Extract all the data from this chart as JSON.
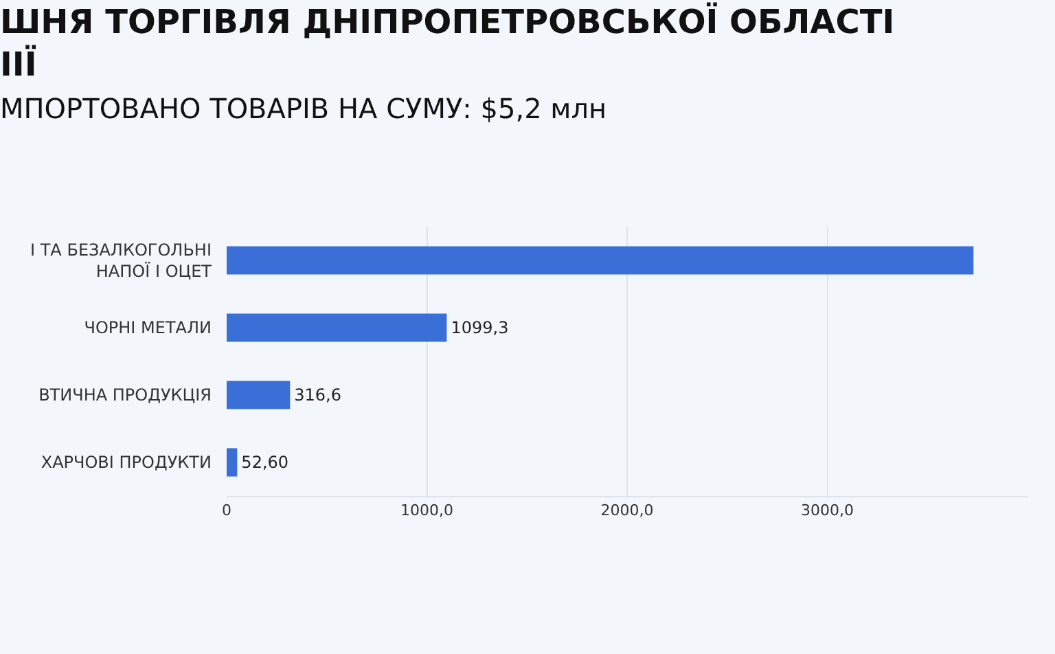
{
  "chart_data": {
    "type": "bar",
    "orientation": "horizontal",
    "title": "ШНЯ ТОРГІВЛЯ ДНІПРОПЕТРОВСЬКОЇ ОБЛАСТІ\nІІЇ",
    "subtitle": "МПОРТОВАНО ТОВАРІВ НА СУМУ: $5,2 млн",
    "categories": [
      "І ТА БЕЗАЛКОГОЛЬНІ\nНАПОЇ І ОЦЕТ",
      "ЧОРНІ МЕТАЛИ",
      "ВТИЧНА ПРОДУКЦІЯ",
      "ХАРЧОВІ ПРОДУКТИ"
    ],
    "values": [
      3730,
      1099.3,
      316.6,
      52.6
    ],
    "color": "#3a6fd8",
    "value_labels": [
      null,
      "1099,3",
      "316,6",
      "52,60"
    ],
    "xlim": [
      0,
      4000
    ],
    "xticks": [
      0,
      {
        "value": 1000,
        "label": "1000,0"
      },
      {
        "value": 2000,
        "label": "2000,0"
      },
      {
        "value": 3000,
        "label": "3000,0"
      }
    ],
    "grid": "x"
  }
}
